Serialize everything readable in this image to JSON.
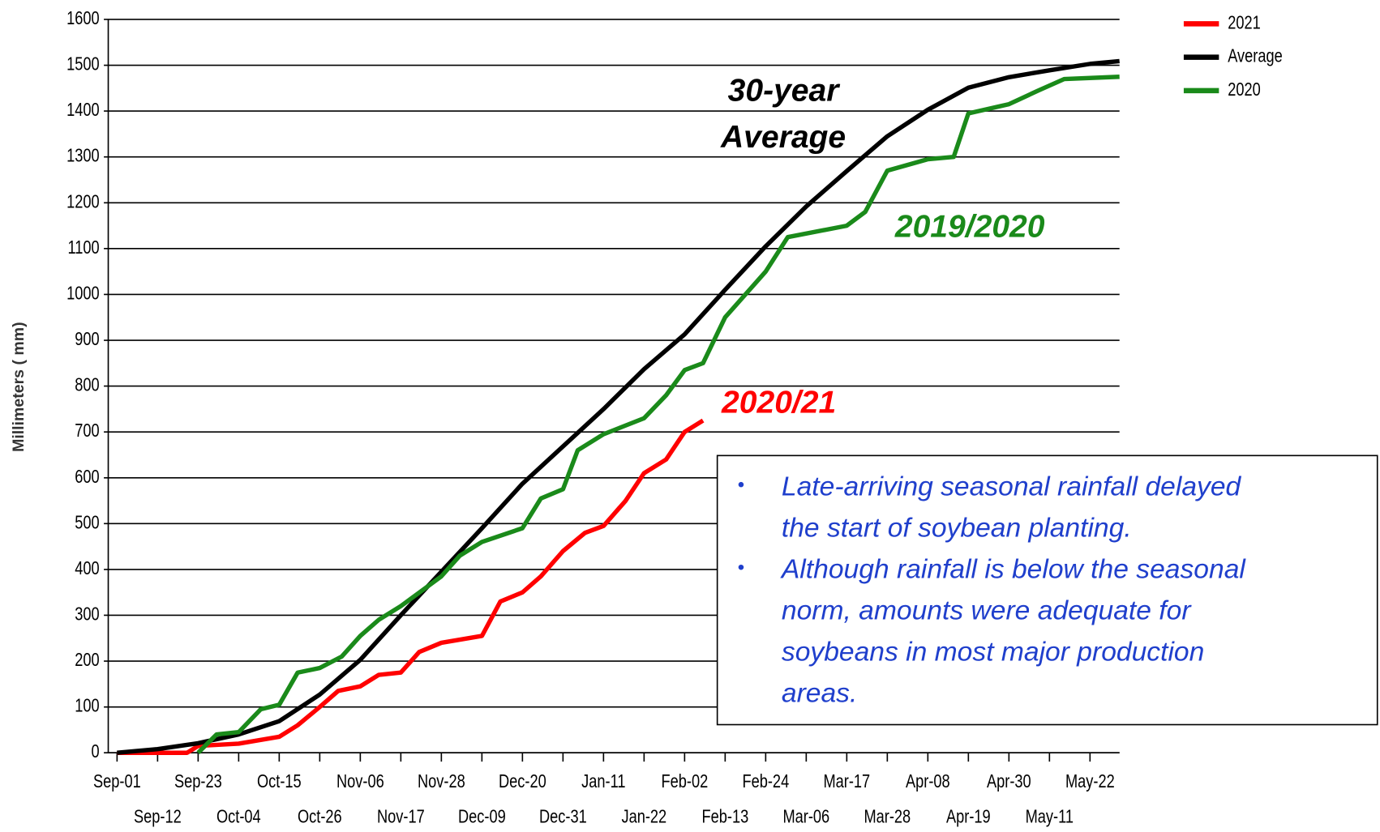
{
  "chart_data": {
    "type": "line",
    "ylabel": "Millimeters ( mm)",
    "ylim": [
      0,
      1600
    ],
    "yticks": [
      0,
      100,
      200,
      300,
      400,
      500,
      600,
      700,
      800,
      900,
      1000,
      1100,
      1200,
      1300,
      1400,
      1500,
      1600
    ],
    "xlim": [
      "Sep-01",
      "May-30"
    ],
    "xticks": [
      "Sep-01",
      "Sep-12",
      "Sep-23",
      "Oct-04",
      "Oct-15",
      "Oct-26",
      "Nov-06",
      "Nov-17",
      "Nov-28",
      "Dec-09",
      "Dec-20",
      "Dec-31",
      "Jan-11",
      "Jan-22",
      "Feb-02",
      "Feb-13",
      "Feb-24",
      "Mar-06",
      "Mar-17",
      "Mar-28",
      "Apr-08",
      "Apr-19",
      "Apr-30",
      "May-11",
      "May-22"
    ],
    "grid": true,
    "legend": "upper right",
    "series": [
      {
        "name": "2021",
        "color": "#ff0000",
        "x": [
          "Sep-01",
          "Sep-20",
          "Sep-23",
          "Oct-04",
          "Oct-15",
          "Oct-20",
          "Oct-26",
          "Oct-31",
          "Nov-06",
          "Nov-11",
          "Nov-17",
          "Nov-22",
          "Nov-28",
          "Dec-09",
          "Dec-14",
          "Dec-20",
          "Dec-25",
          "Dec-31",
          "Jan-06",
          "Jan-11",
          "Jan-17",
          "Jan-22",
          "Jan-28",
          "Feb-02",
          "Feb-07"
        ],
        "values": [
          0,
          0,
          15,
          20,
          35,
          60,
          100,
          135,
          145,
          170,
          175,
          220,
          240,
          255,
          330,
          350,
          385,
          440,
          480,
          495,
          550,
          610,
          640,
          700,
          725
        ]
      },
      {
        "name": "Average",
        "color": "#000000",
        "x": [
          "Sep-01",
          "Sep-12",
          "Sep-23",
          "Oct-04",
          "Oct-15",
          "Oct-26",
          "Nov-06",
          "Nov-17",
          "Nov-28",
          "Dec-09",
          "Dec-20",
          "Jan-11",
          "Jan-22",
          "Feb-02",
          "Feb-13",
          "Feb-24",
          "Mar-06",
          "Mar-17",
          "Mar-28",
          "Apr-08",
          "Apr-19",
          "Apr-30",
          "May-11",
          "May-22",
          "May-30"
        ],
        "values": [
          0,
          8,
          21,
          40,
          69,
          127,
          203,
          300,
          395,
          490,
          587,
          750,
          837,
          913,
          1010,
          1105,
          1192,
          1269,
          1345,
          1403,
          1451,
          1474,
          1489,
          1503,
          1509
        ]
      },
      {
        "name": "2020",
        "color": "#1a8a1a",
        "x": [
          "Sep-23",
          "Sep-28",
          "Oct-04",
          "Oct-10",
          "Oct-15",
          "Oct-20",
          "Oct-26",
          "Nov-01",
          "Nov-06",
          "Nov-11",
          "Nov-17",
          "Nov-28",
          "Dec-03",
          "Dec-09",
          "Dec-20",
          "Dec-25",
          "Dec-31",
          "Jan-04",
          "Jan-11",
          "Jan-22",
          "Jan-28",
          "Feb-02",
          "Feb-07",
          "Feb-13",
          "Feb-24",
          "Mar-01",
          "Mar-17",
          "Mar-22",
          "Mar-28",
          "Apr-08",
          "Apr-15",
          "Apr-19",
          "Apr-30",
          "May-08",
          "May-15",
          "May-30"
        ],
        "values": [
          0,
          40,
          45,
          95,
          105,
          175,
          185,
          210,
          255,
          290,
          320,
          385,
          430,
          460,
          490,
          555,
          575,
          660,
          695,
          730,
          780,
          835,
          850,
          950,
          1050,
          1125,
          1150,
          1180,
          1270,
          1295,
          1300,
          1395,
          1415,
          1445,
          1470,
          1475
        ]
      }
    ],
    "annotations": [
      {
        "text": "30-year",
        "color": "#000000"
      },
      {
        "text": "Average",
        "color": "#000000"
      },
      {
        "text": "2019/2020",
        "color": "#1a8a1a"
      },
      {
        "text": "2020/21",
        "color": "#ff0000"
      }
    ],
    "notes": [
      [
        "Late-arriving seasonal rainfall delayed",
        "the start of soybean planting."
      ],
      [
        "Although rainfall is below the seasonal",
        "norm, amounts were adequate for",
        "soybeans in most major production",
        "areas."
      ]
    ]
  }
}
